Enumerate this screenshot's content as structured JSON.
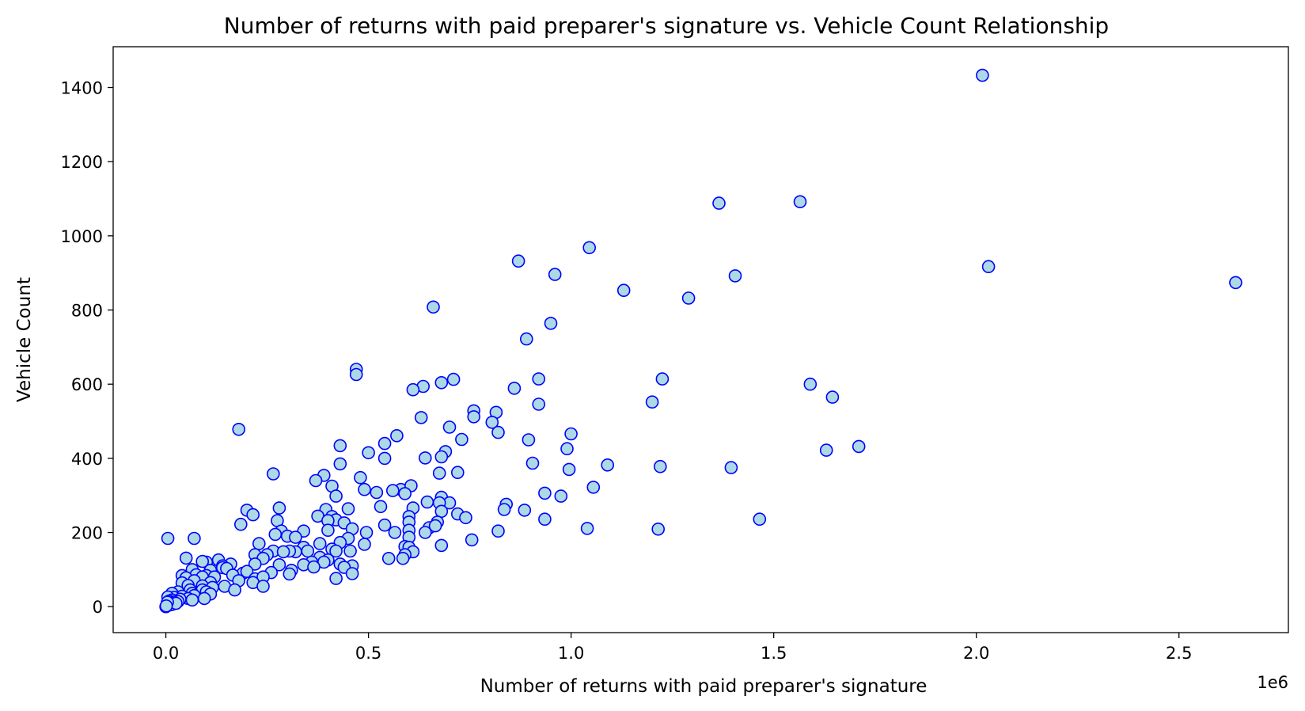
{
  "chart_data": {
    "type": "scatter",
    "title": "Number of returns with paid preparer's signature vs. Vehicle Count Relationship",
    "xlabel": "Number of returns with paid preparer's signature",
    "ylabel": "Vehicle Count",
    "x_offset_label": "1e6",
    "xlim": [
      -0.13,
      2.77
    ],
    "ylim": [
      -70,
      1510
    ],
    "x_ticks": [
      0.0,
      0.5,
      1.0,
      1.5,
      2.0,
      2.5
    ],
    "x_tick_labels": [
      "0.0",
      "0.5",
      "1.0",
      "1.5",
      "2.0",
      "2.5"
    ],
    "y_ticks": [
      0,
      200,
      400,
      600,
      800,
      1000,
      1200,
      1400
    ],
    "y_tick_labels": [
      "0",
      "200",
      "400",
      "600",
      "800",
      "1000",
      "1200",
      "1400"
    ],
    "grid": false,
    "marker_face_color": "#add8e6",
    "marker_edge_color": "#0000ff",
    "points": [
      [
        2.015,
        1433
      ],
      [
        1.565,
        1092
      ],
      [
        1.365,
        1088
      ],
      [
        1.045,
        968
      ],
      [
        0.87,
        932
      ],
      [
        0.96,
        896
      ],
      [
        2.03,
        917
      ],
      [
        1.405,
        892
      ],
      [
        2.64,
        874
      ],
      [
        1.13,
        853
      ],
      [
        1.29,
        832
      ],
      [
        0.66,
        808
      ],
      [
        0.95,
        764
      ],
      [
        0.89,
        722
      ],
      [
        0.47,
        640
      ],
      [
        0.47,
        626
      ],
      [
        1.225,
        614
      ],
      [
        0.92,
        614
      ],
      [
        0.71,
        613
      ],
      [
        0.68,
        604
      ],
      [
        1.59,
        600
      ],
      [
        0.635,
        594
      ],
      [
        0.61,
        585
      ],
      [
        0.86,
        589
      ],
      [
        1.645,
        565
      ],
      [
        1.2,
        552
      ],
      [
        0.92,
        546
      ],
      [
        0.76,
        528
      ],
      [
        0.815,
        524
      ],
      [
        0.76,
        512
      ],
      [
        0.63,
        510
      ],
      [
        0.805,
        497
      ],
      [
        0.18,
        478
      ],
      [
        0.7,
        484
      ],
      [
        0.82,
        470
      ],
      [
        1.0,
        466
      ],
      [
        0.57,
        461
      ],
      [
        0.73,
        451
      ],
      [
        0.895,
        450
      ],
      [
        0.54,
        440
      ],
      [
        0.43,
        434
      ],
      [
        1.71,
        432
      ],
      [
        0.99,
        426
      ],
      [
        1.63,
        422
      ],
      [
        0.69,
        418
      ],
      [
        0.5,
        415
      ],
      [
        0.68,
        404
      ],
      [
        0.64,
        401
      ],
      [
        0.54,
        400
      ],
      [
        0.905,
        387
      ],
      [
        0.43,
        385
      ],
      [
        1.09,
        382
      ],
      [
        1.22,
        378
      ],
      [
        1.395,
        375
      ],
      [
        0.995,
        370
      ],
      [
        0.72,
        362
      ],
      [
        0.675,
        360
      ],
      [
        0.265,
        358
      ],
      [
        0.39,
        354
      ],
      [
        0.37,
        340
      ],
      [
        0.48,
        348
      ],
      [
        0.41,
        325
      ],
      [
        1.055,
        322
      ],
      [
        0.49,
        316
      ],
      [
        0.58,
        316
      ],
      [
        0.56,
        313
      ],
      [
        0.605,
        326
      ],
      [
        0.52,
        308
      ],
      [
        0.59,
        305
      ],
      [
        0.935,
        306
      ],
      [
        0.42,
        298
      ],
      [
        0.68,
        295
      ],
      [
        0.975,
        298
      ],
      [
        0.7,
        280
      ],
      [
        0.645,
        282
      ],
      [
        0.675,
        280
      ],
      [
        0.84,
        276
      ],
      [
        0.53,
        270
      ],
      [
        0.61,
        266
      ],
      [
        0.28,
        266
      ],
      [
        0.395,
        262
      ],
      [
        0.45,
        264
      ],
      [
        0.835,
        262
      ],
      [
        0.885,
        260
      ],
      [
        0.2,
        260
      ],
      [
        0.72,
        250
      ],
      [
        0.68,
        257
      ],
      [
        0.215,
        248
      ],
      [
        0.375,
        244
      ],
      [
        0.41,
        243
      ],
      [
        0.6,
        243
      ],
      [
        0.74,
        240
      ],
      [
        0.935,
        236
      ],
      [
        0.42,
        234
      ],
      [
        1.465,
        236
      ],
      [
        0.4,
        232
      ],
      [
        0.275,
        232
      ],
      [
        0.6,
        228
      ],
      [
        0.67,
        228
      ],
      [
        0.44,
        226
      ],
      [
        0.54,
        220
      ],
      [
        0.185,
        222
      ],
      [
        0.65,
        213
      ],
      [
        0.665,
        218
      ],
      [
        1.04,
        211
      ],
      [
        1.215,
        209
      ],
      [
        0.6,
        206
      ],
      [
        0.82,
        204
      ],
      [
        0.46,
        210
      ],
      [
        0.285,
        204
      ],
      [
        0.34,
        204
      ],
      [
        0.4,
        206
      ],
      [
        0.495,
        200
      ],
      [
        0.64,
        200
      ],
      [
        0.565,
        200
      ],
      [
        0.3,
        190
      ],
      [
        0.27,
        195
      ],
      [
        0.32,
        187
      ],
      [
        0.6,
        187
      ],
      [
        0.45,
        184
      ],
      [
        0.005,
        184
      ],
      [
        0.07,
        184
      ],
      [
        0.755,
        180
      ],
      [
        0.38,
        170
      ],
      [
        0.43,
        173
      ],
      [
        0.49,
        168
      ],
      [
        0.23,
        170
      ],
      [
        0.59,
        162
      ],
      [
        0.34,
        160
      ],
      [
        0.68,
        165
      ],
      [
        0.6,
        160
      ],
      [
        0.41,
        155
      ],
      [
        0.42,
        150
      ],
      [
        0.455,
        150
      ],
      [
        0.61,
        148
      ],
      [
        0.35,
        150
      ],
      [
        0.32,
        148
      ],
      [
        0.305,
        150
      ],
      [
        0.265,
        150
      ],
      [
        0.22,
        140
      ],
      [
        0.25,
        140
      ],
      [
        0.24,
        130
      ],
      [
        0.29,
        148
      ],
      [
        0.59,
        140
      ],
      [
        0.38,
        133
      ],
      [
        0.55,
        130
      ],
      [
        0.585,
        130
      ],
      [
        0.4,
        126
      ],
      [
        0.13,
        126
      ],
      [
        0.36,
        120
      ],
      [
        0.39,
        120
      ],
      [
        0.05,
        131
      ],
      [
        0.1,
        120
      ],
      [
        0.09,
        122
      ],
      [
        0.16,
        115
      ],
      [
        0.43,
        115
      ],
      [
        0.46,
        110
      ],
      [
        0.22,
        115
      ],
      [
        0.14,
        110
      ],
      [
        0.28,
        113
      ],
      [
        0.34,
        113
      ],
      [
        0.365,
        107
      ],
      [
        0.14,
        105
      ],
      [
        0.44,
        106
      ],
      [
        0.15,
        103
      ],
      [
        0.065,
        100
      ],
      [
        0.11,
        98
      ],
      [
        0.31,
        98
      ],
      [
        0.19,
        90
      ],
      [
        0.26,
        92
      ],
      [
        0.2,
        95
      ],
      [
        0.165,
        85
      ],
      [
        0.04,
        84
      ],
      [
        0.075,
        86
      ],
      [
        0.1,
        84
      ],
      [
        0.305,
        88
      ],
      [
        0.46,
        89
      ],
      [
        0.22,
        75
      ],
      [
        0.24,
        80
      ],
      [
        0.42,
        76
      ],
      [
        0.12,
        80
      ],
      [
        0.09,
        80
      ],
      [
        0.05,
        78
      ],
      [
        0.18,
        70
      ],
      [
        0.07,
        70
      ],
      [
        0.11,
        65
      ],
      [
        0.04,
        64
      ],
      [
        0.215,
        65
      ],
      [
        0.055,
        57
      ],
      [
        0.09,
        56
      ],
      [
        0.145,
        55
      ],
      [
        0.115,
        52
      ],
      [
        0.24,
        55
      ],
      [
        0.06,
        45
      ],
      [
        0.09,
        45
      ],
      [
        0.17,
        45
      ],
      [
        0.1,
        40
      ],
      [
        0.03,
        40
      ],
      [
        0.015,
        36
      ],
      [
        0.065,
        36
      ],
      [
        0.11,
        34
      ],
      [
        0.07,
        30
      ],
      [
        0.04,
        28
      ],
      [
        0.02,
        25
      ],
      [
        0.005,
        26
      ],
      [
        0.055,
        22
      ],
      [
        0.095,
        22
      ],
      [
        0.035,
        20
      ],
      [
        0.015,
        18
      ],
      [
        0.065,
        18
      ],
      [
        0.008,
        15
      ],
      [
        0.03,
        14
      ],
      [
        0.02,
        12
      ],
      [
        0.012,
        10
      ],
      [
        0.005,
        8
      ],
      [
        0.01,
        5
      ],
      [
        0.003,
        3
      ],
      [
        0.0,
        0
      ],
      [
        0.015,
        6
      ],
      [
        0.025,
        9
      ],
      [
        0.004,
        12
      ],
      [
        0.001,
        2
      ]
    ]
  }
}
